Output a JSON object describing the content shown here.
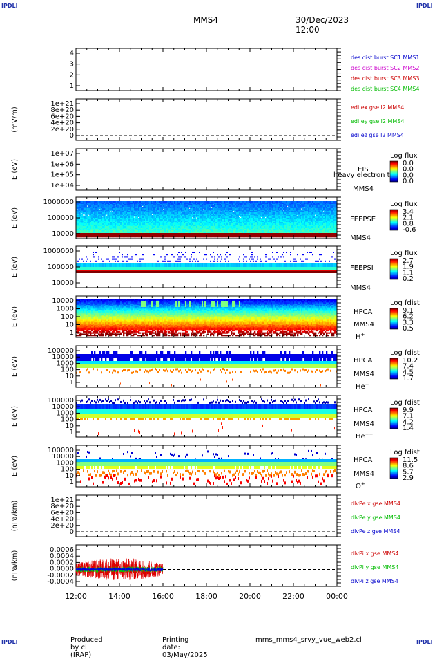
{
  "corner_label": "IPDLI",
  "header": {
    "spacecraft": "MMS4",
    "datetime": "30/Dec/2023 12:00"
  },
  "footer": {
    "produced_by": "Produced by cl (IRAP)",
    "printing_date": "Printing date: 03/May/2025",
    "script": "mms_mms4_srvy_vue_web2.cl"
  },
  "x_axis": {
    "ticks": [
      "12:00",
      "14:00",
      "16:00",
      "18:00",
      "20:00",
      "22:00",
      "00:00"
    ],
    "hours": [
      12,
      14,
      16,
      18,
      20,
      22,
      24
    ]
  },
  "chart_data": [
    {
      "id": "p1",
      "type": "table",
      "ylabel": "",
      "yticks": [
        "1",
        "2",
        "3",
        "4"
      ],
      "legend": [
        {
          "text": "des dist burst SC1 MMS1",
          "color": "#0000cc"
        },
        {
          "text": "des dist burst SC2 MMS2",
          "color": "#cc00cc"
        },
        {
          "text": "des dist burst SC3 MMS3",
          "color": "#cc0000"
        },
        {
          "text": "des dist burst SC4 MMS4",
          "color": "#00bb00"
        }
      ]
    },
    {
      "id": "p2",
      "type": "line",
      "ylabel": "(mV/m)",
      "yticks": [
        "0",
        "2e+20",
        "4e+20",
        "6e+20",
        "8e+20",
        "1e+21"
      ],
      "legend": [
        {
          "text": "edi ex gse l2 MMS4",
          "color": "#cc0000"
        },
        {
          "text": "edi ey gse l2 MMS4",
          "color": "#00bb00"
        },
        {
          "text": "edi ez gse l2 MMS4",
          "color": "#0000cc"
        }
      ]
    },
    {
      "id": "p3",
      "type": "heatmap",
      "ylabel": "E (eV)",
      "yticks": [
        "1e+04",
        "1e+05",
        "1e+06",
        "1e+07"
      ],
      "labels": [
        "EIS",
        "MMS4"
      ],
      "overlay": "heavy electron ta",
      "cbar_title": "Log flux",
      "cbar_ticks": [
        "0.0",
        "0.0",
        "0.0",
        "0.0"
      ]
    },
    {
      "id": "p4",
      "type": "heatmap",
      "ylabel": "E (eV)",
      "yticks": [
        "10000",
        "100000",
        "1000000"
      ],
      "labels": [
        "FEEPSE",
        "MMS4"
      ],
      "cbar_title": "Log flux",
      "cbar_ticks": [
        "3.4",
        "2.1",
        "0.8",
        "-0.6"
      ]
    },
    {
      "id": "p5",
      "type": "heatmap",
      "ylabel": "E (eV)",
      "yticks": [
        "10000",
        "100000",
        "1000000"
      ],
      "labels": [
        "FEEPSI",
        "MMS4"
      ],
      "cbar_title": "Log flux",
      "cbar_ticks": [
        "2.7",
        "1.9",
        "1.1",
        "0.2"
      ]
    },
    {
      "id": "p6",
      "type": "heatmap",
      "ylabel": "E (eV)",
      "yticks": [
        "1",
        "10",
        "100",
        "1000",
        "10000"
      ],
      "labels": [
        "HPCA",
        "MMS4",
        "H+"
      ],
      "cbar_title": "Log fdist",
      "cbar_ticks": [
        "9.1",
        "6.2",
        "3.3",
        "0.5"
      ]
    },
    {
      "id": "p7",
      "type": "heatmap",
      "ylabel": "E (eV)",
      "yticks": [
        "1",
        "10",
        "100",
        "1000",
        "10000",
        "100000"
      ],
      "labels": [
        "HPCA",
        "MMS4",
        "He+"
      ],
      "cbar_title": "Log fdist",
      "cbar_ticks": [
        "10.2",
        "7.4",
        "4.5",
        "1.7"
      ]
    },
    {
      "id": "p8",
      "type": "heatmap",
      "ylabel": "E (eV)",
      "yticks": [
        "1",
        "10",
        "100",
        "1000",
        "10000",
        "100000"
      ],
      "labels": [
        "HPCA",
        "MMS4",
        "He++"
      ],
      "cbar_title": "Log fdist",
      "cbar_ticks": [
        "9.9",
        "7.1",
        "4.2",
        "1.4"
      ]
    },
    {
      "id": "p9",
      "type": "heatmap",
      "ylabel": "E (eV)",
      "yticks": [
        "1",
        "10",
        "100",
        "1000",
        "10000",
        "100000"
      ],
      "labels": [
        "HPCA",
        "MMS4",
        "O+"
      ],
      "cbar_title": "Log fdist",
      "cbar_ticks": [
        "11.5",
        "8.6",
        "5.7",
        "2.9"
      ]
    },
    {
      "id": "p10",
      "type": "line",
      "ylabel": "(nPa/km)",
      "yticks": [
        "0",
        "2e+20",
        "4e+20",
        "6e+20",
        "8e+20",
        "1e+21"
      ],
      "legend": [
        {
          "text": "dlvPe x gse MMS4",
          "color": "#cc0000"
        },
        {
          "text": "dlvPe y gse MMS4",
          "color": "#00bb00"
        },
        {
          "text": "dlvPe z gse MMS4",
          "color": "#0000cc"
        }
      ]
    },
    {
      "id": "p11",
      "type": "line",
      "ylabel": "(nPa/km)",
      "yticks": [
        "-0.0004",
        "-0.0002",
        "0.0000",
        "0.0002",
        "0.0004",
        "0.0006"
      ],
      "data_range_hours": [
        12,
        16
      ],
      "ylim": [
        -0.00045,
        0.00065
      ],
      "legend": [
        {
          "text": "dlvPi x gse MMS4",
          "color": "#cc0000"
        },
        {
          "text": "dlvPi y gse MMS4",
          "color": "#00bb00"
        },
        {
          "text": "dlvPi z gse MMS4",
          "color": "#0000cc"
        }
      ]
    }
  ]
}
